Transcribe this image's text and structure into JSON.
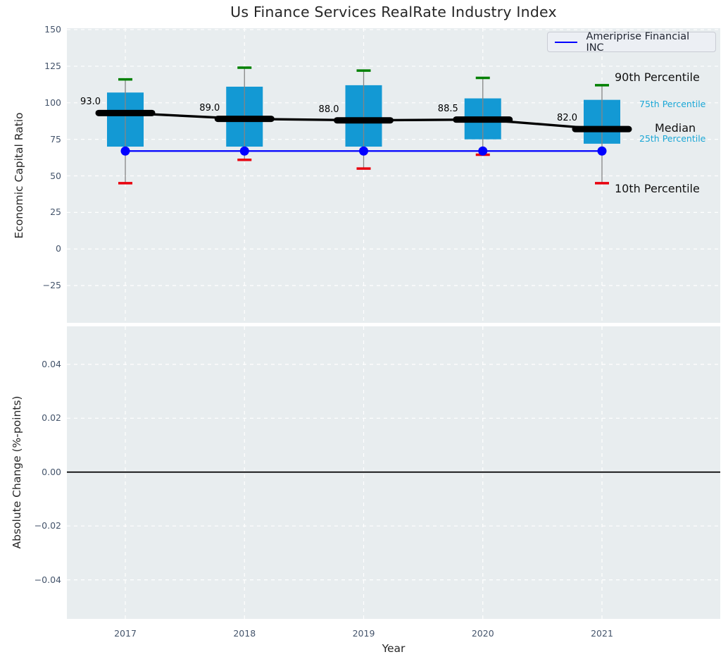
{
  "title": "Us Finance Services RealRate Industry Index",
  "legend": {
    "label": "Ameriprise Financial INC",
    "line_color": "#0000ff"
  },
  "annotations": {
    "p90": "90th Percentile",
    "p75": "75th Percentile",
    "median": "Median",
    "p25": "25th Percentile",
    "p10": "10th Percentile"
  },
  "colors": {
    "axes_bg": "#e8edef",
    "grid": "#ffffff",
    "box_fill": "#1399d4",
    "cap_90": "#008000",
    "cap_10": "#e8000d",
    "company_blue": "#0000ff",
    "median_black": "#000000",
    "whisker_gray": "#858585",
    "tick_text": "#44546b",
    "annotation_cyan": "#1ba7d6"
  },
  "chart_data": [
    {
      "type": "boxplot+line",
      "ylabel": "Economic Capital Ratio",
      "x_years": [
        "2017",
        "2018",
        "2019",
        "2020",
        "2021"
      ],
      "series": {
        "p90": [
          116,
          124,
          122,
          117,
          112
        ],
        "p75": [
          107,
          111,
          112,
          103,
          102
        ],
        "median": [
          93.0,
          89.0,
          88.0,
          88.5,
          82.0
        ],
        "p25": [
          70,
          70,
          70,
          75,
          72
        ],
        "p10": [
          45,
          61,
          55,
          64.5,
          45
        ],
        "company": [
          67,
          67,
          67,
          67,
          67
        ]
      },
      "median_labels": [
        "93.0",
        "89.0",
        "88.0",
        "88.5",
        "82.0"
      ],
      "company_name": "Ameriprise Financial INC",
      "yticks": [
        {
          "v": 150,
          "label": "150"
        },
        {
          "v": 125,
          "label": "125"
        },
        {
          "v": 100,
          "label": "100"
        },
        {
          "v": 75,
          "label": "75"
        },
        {
          "v": 50,
          "label": "50"
        },
        {
          "v": 25,
          "label": "25"
        },
        {
          "v": 0,
          "label": "0"
        },
        {
          "v": -25,
          "label": "−25"
        }
      ],
      "ylim": [
        -50.5,
        151
      ],
      "grid": "dashed-white",
      "legend_position": "upper right"
    },
    {
      "type": "line",
      "ylabel": "Absolute Change (%-points)",
      "xlabel": "Year",
      "zero_line": 0.0,
      "yticks": [
        {
          "v": 0.04,
          "label": "0.04"
        },
        {
          "v": 0.02,
          "label": "0.02"
        },
        {
          "v": 0.0,
          "label": "0.00"
        },
        {
          "v": -0.02,
          "label": "−0.02"
        },
        {
          "v": -0.04,
          "label": "−0.04"
        }
      ],
      "ylim": [
        -0.0545,
        0.0541
      ],
      "grid": "dashed-white"
    }
  ]
}
